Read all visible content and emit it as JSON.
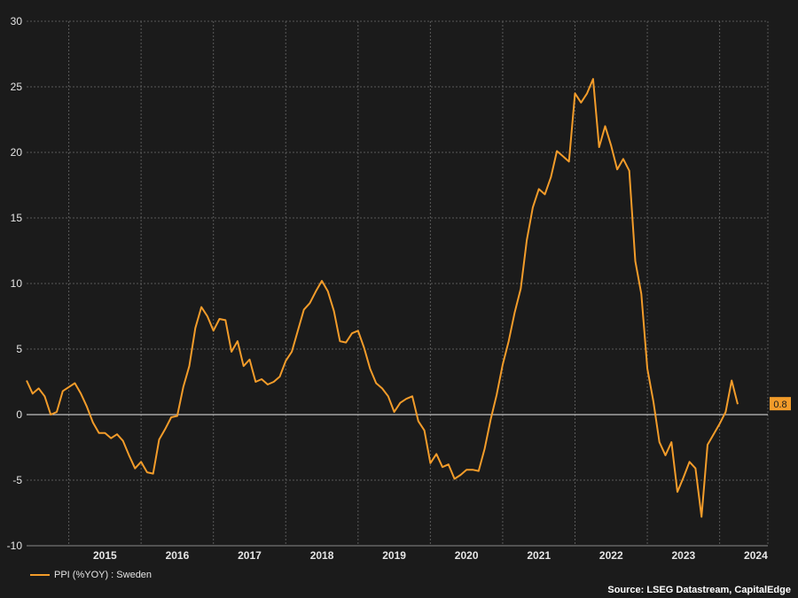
{
  "chart_data": {
    "type": "line",
    "title": "",
    "xlabel": "",
    "ylabel": "",
    "ylim": [
      -10,
      30
    ],
    "yticks": [
      -10,
      -5,
      0,
      5,
      10,
      15,
      20,
      25,
      30
    ],
    "xticks": [
      "2015",
      "2016",
      "2017",
      "2018",
      "2019",
      "2020",
      "2021",
      "2022",
      "2023",
      "2024"
    ],
    "x_start": "2014-06",
    "grid": true,
    "zero_line": true,
    "legend_position": "bottom-left",
    "series": [
      {
        "name": "PPI (%YOY) : Sweden",
        "color": "#f39c2a",
        "last_value_label": "0.8",
        "values": [
          2.6,
          1.6,
          2.0,
          1.4,
          0.0,
          0.2,
          1.8,
          2.1,
          2.4,
          1.6,
          0.6,
          -0.6,
          -1.4,
          -1.4,
          -1.8,
          -1.5,
          -2.0,
          -3.1,
          -4.1,
          -3.6,
          -4.4,
          -4.5,
          -1.9,
          -1.1,
          -0.2,
          -0.1,
          2.1,
          3.7,
          6.6,
          8.2,
          7.5,
          6.4,
          7.3,
          7.2,
          4.8,
          5.6,
          3.7,
          4.2,
          2.5,
          2.7,
          2.3,
          2.5,
          2.9,
          4.1,
          4.8,
          6.4,
          8.0,
          8.5,
          9.4,
          10.2,
          9.4,
          7.9,
          5.6,
          5.5,
          6.2,
          6.4,
          5.1,
          3.5,
          2.4,
          2.0,
          1.4,
          0.2,
          0.9,
          1.2,
          1.4,
          -0.5,
          -1.2,
          -3.7,
          -3.0,
          -4.0,
          -3.8,
          -4.9,
          -4.6,
          -4.2,
          -4.2,
          -4.3,
          -2.6,
          -0.4,
          1.5,
          3.8,
          5.6,
          7.8,
          9.6,
          13.3,
          15.8,
          17.2,
          16.8,
          18.1,
          20.1,
          19.7,
          19.3,
          24.5,
          23.8,
          24.5,
          25.6,
          20.4,
          22.0,
          20.5,
          18.7,
          19.5,
          18.6,
          11.7,
          9.2,
          3.5,
          1.0,
          -2.1,
          -3.1,
          -2.1,
          -5.9,
          -4.8,
          -3.6,
          -4.1,
          -7.8,
          -2.3,
          -1.5,
          -0.7,
          0.2,
          2.6,
          0.8
        ]
      }
    ]
  },
  "legend": {
    "label": "PPI (%YOY) : Sweden"
  },
  "source": "Source: LSEG Datastream, CapitalEdge"
}
